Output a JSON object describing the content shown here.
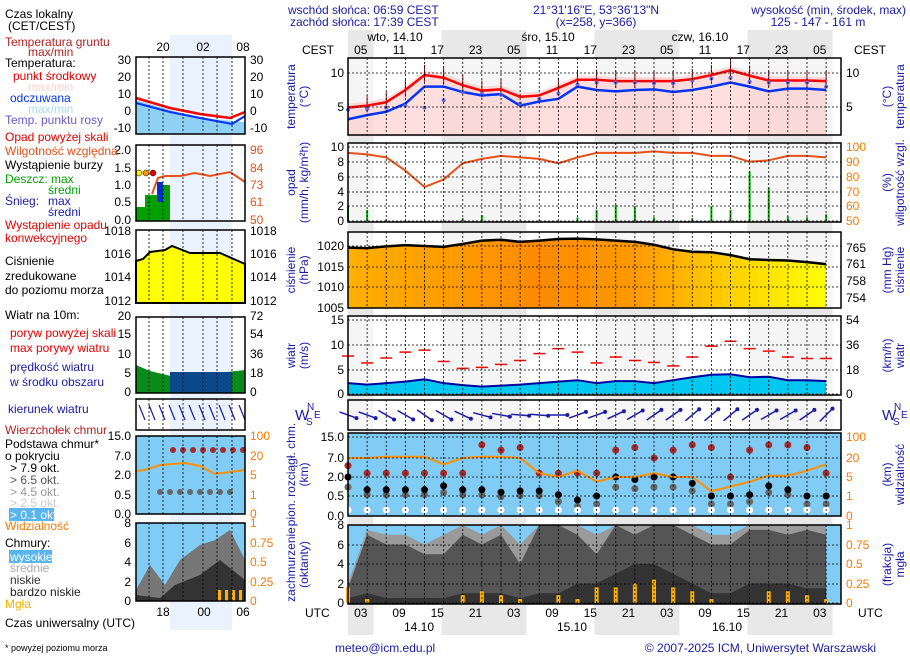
{
  "header": {
    "sunrise": "wschód słońca: 06:59 CEST",
    "sunset": "zachód słońca: 17:39 CEST",
    "coords": "21°31'16\"E, 53°36'13\"N",
    "grid": "(x=258,  y=366)",
    "elevation_label": "wysokość (min, środek, max)",
    "elevation_values": "125 - 147 - 161 m"
  },
  "timeline": {
    "tz_top": "CEST",
    "tz_bottom": "UTC",
    "days_top": [
      "wto, 14.10",
      "śro, 15.10",
      "czw, 16.10"
    ],
    "days_bottom": [
      "14.10",
      "15.10",
      "16.10"
    ],
    "hours_top": [
      "05",
      "11",
      "17",
      "23",
      "05",
      "11",
      "17",
      "23",
      "05",
      "11",
      "17",
      "23",
      "05"
    ],
    "hours_bottom": [
      "03",
      "09",
      "15",
      "21",
      "03",
      "09",
      "15",
      "21",
      "03",
      "09",
      "15",
      "21",
      "03"
    ]
  },
  "axes": {
    "temp": {
      "title": "temperatura",
      "unit": "(°C)",
      "left": [
        "10",
        "5"
      ],
      "right": [
        "10",
        "5"
      ]
    },
    "precip": {
      "title": "opad",
      "unit": "(mm/h, kg/m²h)",
      "left": [
        "10",
        "8",
        "6",
        "4",
        "2",
        "0"
      ],
      "right_title": "wilgotność wzgl.",
      "right_unit": "(%)",
      "right": [
        "100",
        "90",
        "80",
        "70",
        "60",
        "50"
      ]
    },
    "pressure": {
      "title": "ciśnienie",
      "unit": "(hPa)",
      "left": [
        "1020",
        "1015",
        "1010",
        "1005"
      ],
      "right_title": "ciśnienie",
      "right_unit": "(mm Hg)",
      "right": [
        "765",
        "761",
        "758",
        "754"
      ]
    },
    "wind": {
      "title": "wiatr",
      "unit": "(m/s)",
      "left": [
        "15",
        "10",
        "5",
        "0"
      ],
      "right_title": "wiatr",
      "right_unit": "(km/h)",
      "right": [
        "54",
        "36",
        "18",
        "0"
      ]
    },
    "winddir": {
      "compass": [
        "W",
        "N",
        "S",
        "E"
      ]
    },
    "cloudbase": {
      "title": "pion. rozciągł. chm.",
      "unit": "(km)",
      "left": [
        "15.0",
        "7.0",
        "2.0",
        "0.5",
        "0.0"
      ],
      "right_title": "widzialność",
      "right_unit": "(km)",
      "right": [
        "100",
        "20",
        "5",
        "1",
        "0"
      ]
    },
    "cloudcover": {
      "title": "zachmurzenie",
      "unit": "(oktanty)",
      "left": [
        "8",
        "6",
        "4",
        "2",
        "0"
      ],
      "right_title": "mgła",
      "right_unit": "(frakcja)",
      "right": [
        "1",
        "0.75",
        "0.5",
        "0.25",
        "0"
      ]
    }
  },
  "legend": {
    "local_time": "Czas lokalny",
    "local_time_tz": "(CET/CEST)",
    "top_hours": [
      "20",
      "02",
      "08"
    ],
    "bottom_hours": [
      "18",
      "00",
      "06"
    ],
    "ground_temp": "Temperatura gruntu",
    "ground_temp_mm": "max/min",
    "temperature": "Temperatura:",
    "mid_point": "punkt środkowy",
    "mid_mm": "max/min",
    "feels": "odczuwana",
    "feels_mm": "max/min",
    "dew": "Temp. punktu rosy",
    "temp_ticks": [
      "30",
      "20",
      "10",
      "0",
      "-10"
    ],
    "precip_over": "Opad powyżej skali",
    "humidity": "Wilgotność względna",
    "storm": "Wystąpienie burzy",
    "rain": "Deszcz: max",
    "rain_mean": "średni",
    "snow": "Śnieg:",
    "snow_max": "max",
    "snow_mean": "średni",
    "convective": "Wystąpienie opadu",
    "convective2": "konwekcyjnego",
    "precip_ticks": [
      "2.0",
      "1.5",
      "1.0",
      "0.5",
      "0.0"
    ],
    "hum_ticks": [
      "96",
      "84",
      "73",
      "61",
      "50"
    ],
    "pressure1": "Ciśnienie",
    "pressure2": "zredukowane",
    "pressure3": "do poziomu morza",
    "press_ticks": [
      "1018",
      "1016",
      "1014",
      "1012"
    ],
    "wind_title": "Wiatr na 10m:",
    "gust_over": "poryw powyżej skali",
    "gust_max": "max porywy wiatru",
    "wind_speed": "prędkość wiatru",
    "wind_speed2": "w środku obszaru",
    "wind_ticks": [
      "20",
      "15",
      "10",
      "5",
      "0"
    ],
    "wind_kmh_ticks": [
      "72",
      "54",
      "36",
      "18",
      "0"
    ],
    "wind_dir": "kierunek wiatru",
    "cloud_top": "Wierzchołek chmur",
    "cloud_base": "Podstawa chmur*",
    "cloud_base2": "o pokryciu",
    "okt": [
      "> 7.9 okt.",
      "> 6.5 okt.",
      "> 4.5 okt.",
      "> 2.5 okt.",
      "> 0.1 okt."
    ],
    "visibility": "Widzialność",
    "cb_ticks": [
      "15.0",
      "7.0",
      "2.0",
      "0.5",
      "0.0"
    ],
    "vis_ticks": [
      "100",
      "20",
      "5",
      "1",
      "0"
    ],
    "clouds": "Chmury:",
    "high": "wysokie",
    "mid": "średnie",
    "low": "niskie",
    "very_low": "bardzo niskie",
    "fog": "Mgła",
    "cc_ticks": [
      "8",
      "6",
      "4",
      "2",
      "0"
    ],
    "fog_ticks": [
      "1",
      "0.75",
      "0.5",
      "0.25",
      "0"
    ],
    "utc": "Czas uniwersalny (UTC)",
    "footnote": "* powyżej poziomu morza"
  },
  "footer": {
    "email": "meteo@icm.edu.pl",
    "copyright": "© 2007-2025 ICM, Uniwersytet Warszawski"
  },
  "colors": {
    "temp": "#ff0000",
    "feels": "#0033ff",
    "dew": "#6666dd",
    "humidity": "#e8501a",
    "rain": "#00b000",
    "gust": "#ff0000",
    "wind": "#00c8f0",
    "winddir": "#1a1aa6",
    "cloud_top": "#a52a2a",
    "visibility": "#ff9000",
    "fog": "#ffb000",
    "night": "#e8e8e8",
    "sky": "#80ccf5"
  },
  "chart_data": {
    "type": "line",
    "x_label": "CEST",
    "x": [
      "14.10 03",
      "06",
      "09",
      "12",
      "15",
      "18",
      "21",
      "15.10 00",
      "03",
      "06",
      "09",
      "12",
      "15",
      "18",
      "21",
      "16.10 00",
      "03",
      "06",
      "09",
      "12",
      "15",
      "18",
      "21",
      "17.10 00",
      "03",
      "06"
    ],
    "series": [
      {
        "name": "punkt środkowy",
        "panel": "temp",
        "values": [
          4.9,
          5.2,
          5.7,
          7.5,
          9.7,
          9.3,
          8.2,
          7.4,
          7.6,
          6.5,
          6.7,
          7.8,
          9.0,
          9.0,
          8.8,
          8.8,
          8.8,
          8.8,
          9.1,
          9.7,
          10.4,
          9.6,
          8.9,
          8.9,
          8.9,
          8.8
        ]
      },
      {
        "name": "odczuwana",
        "panel": "temp",
        "values": [
          3.2,
          3.8,
          4.3,
          5.5,
          8.0,
          8.0,
          7.2,
          6.7,
          6.9,
          5.2,
          5.8,
          6.2,
          8.0,
          7.5,
          7.3,
          7.5,
          7.6,
          7.2,
          7.5,
          8.0,
          8.6,
          8.0,
          7.3,
          7.7,
          7.7,
          7.5
        ]
      },
      {
        "name": "Temp. punktu rosy",
        "panel": "temp",
        "values": [
          4.6,
          4.7,
          4.9,
          5.2,
          4.9,
          6.0,
          7.2,
          7.0,
          6.8,
          5.5,
          6.2,
          7.0,
          8.3,
          8.6,
          8.6,
          8.6,
          8.5,
          8.5,
          8.9,
          9.2,
          9.3,
          8.7,
          8.6,
          8.6,
          8.6,
          8.0
        ]
      },
      {
        "name": "Wilgotność względna",
        "panel": "precip",
        "values": [
          96,
          95,
          93,
          84,
          73,
          78,
          89,
          92,
          94,
          93,
          92,
          89,
          93,
          96,
          96,
          96,
          97,
          96,
          96,
          94,
          94,
          90,
          91,
          94,
          94,
          93
        ]
      },
      {
        "name": "Deszcz",
        "panel": "precip",
        "values": [
          2.0,
          1.5,
          0.2,
          0,
          0,
          0,
          0.4,
          0.8,
          0,
          0,
          0.1,
          0,
          0.5,
          1.5,
          2.2,
          2.0,
          0.5,
          0.2,
          0.4,
          2.0,
          1.5,
          6.7,
          4.5,
          0.6,
          0.5,
          0.9
        ]
      },
      {
        "name": "Ciśnienie",
        "panel": "pressure",
        "values": [
          1019.6,
          1019.5,
          1019.9,
          1020.2,
          1020.0,
          1019.8,
          1020.5,
          1021.3,
          1021.5,
          1021.0,
          1021.3,
          1021.7,
          1021.8,
          1021.6,
          1021.3,
          1021.0,
          1020.3,
          1019.2,
          1018.6,
          1018.5,
          1017.8,
          1016.8,
          1016.6,
          1016.5,
          1016.1,
          1015.6
        ]
      },
      {
        "name": "prędkość wiatru",
        "panel": "wind",
        "values": [
          2.2,
          1.9,
          2.2,
          2.5,
          3.0,
          2.2,
          1.8,
          1.5,
          1.7,
          1.9,
          2.2,
          2.5,
          2.8,
          2.2,
          2.6,
          2.6,
          2.2,
          2.8,
          3.4,
          3.9,
          4.0,
          3.4,
          3.5,
          2.8,
          2.8,
          2.6
        ]
      },
      {
        "name": "max porywy wiatru",
        "panel": "wind",
        "values": [
          7.7,
          6.3,
          7.3,
          8.5,
          8.9,
          6.6,
          5.2,
          5.4,
          6.0,
          6.8,
          8.2,
          9.2,
          8.5,
          6.3,
          7.5,
          6.8,
          6.4,
          5.7,
          7.5,
          9.7,
          10.7,
          9.2,
          8.7,
          7.5,
          7.2,
          7.2
        ]
      },
      {
        "name": "kierunek wiatru",
        "panel": "winddir",
        "values": [
          290,
          290,
          300,
          300,
          305,
          300,
          295,
          285,
          280,
          275,
          275,
          270,
          250,
          250,
          245,
          240,
          235,
          235,
          230,
          230,
          230,
          235,
          240,
          240,
          235,
          225
        ]
      },
      {
        "name": "Wierzchołek chmur",
        "panel": "cloudbase",
        "values": [
          5,
          3,
          3,
          3,
          3,
          3,
          3,
          12,
          10,
          11,
          3,
          3,
          3,
          3,
          10,
          11,
          7,
          10,
          12,
          11,
          2,
          10,
          12,
          12,
          11,
          3
        ]
      },
      {
        "name": "> 7.9 okt.",
        "panel": "cloudbase",
        "values": [
          2,
          1,
          1,
          1,
          1,
          1.3,
          1,
          1,
          0.8,
          0.9,
          0.9,
          0.6,
          0.4,
          0.5,
          2,
          1.8,
          2,
          2,
          1.5,
          0.5,
          0.5,
          0.6,
          1.3,
          1,
          0.5,
          0.5
        ]
      },
      {
        "name": "Widzialność",
        "panel": "cloudbase",
        "values": [
          20,
          20,
          25,
          25,
          25,
          15,
          20,
          25,
          25,
          20,
          8,
          5,
          10,
          4,
          5,
          5,
          8,
          5,
          5,
          2,
          3,
          4,
          6,
          6,
          10,
          15
        ]
      },
      {
        "name": "wysokie",
        "panel": "cloudcover",
        "values": [
          2,
          7.5,
          7,
          7,
          6,
          7,
          8,
          7,
          8,
          6,
          8,
          8,
          8,
          7,
          8,
          8,
          8,
          8,
          8,
          7,
          7,
          8,
          8,
          8,
          8,
          8
        ]
      },
      {
        "name": "niskie",
        "panel": "cloudcover",
        "values": [
          1.5,
          7,
          6,
          6,
          5,
          5,
          7,
          6,
          7,
          4,
          8,
          8,
          7,
          5,
          8,
          7,
          8,
          8,
          7,
          6,
          6,
          7.5,
          7.5,
          7,
          7.5,
          7
        ]
      },
      {
        "name": "bardzo niskie",
        "panel": "cloudcover",
        "values": [
          0.5,
          1,
          0.5,
          0.5,
          0.5,
          0.5,
          1,
          1,
          1,
          0.5,
          1,
          1,
          2,
          2,
          3,
          4,
          4,
          3,
          2,
          1,
          1,
          2,
          2,
          2,
          1.5,
          1.5
        ]
      },
      {
        "name": "Mgła",
        "panel": "cloudcover",
        "values": [
          0.2,
          0.05,
          0,
          0,
          0,
          0,
          0.1,
          0.15,
          0.1,
          0.05,
          0,
          0.1,
          0.05,
          0.2,
          0.2,
          0.25,
          0.3,
          0.2,
          0.15,
          0.05,
          0,
          0,
          0.15,
          0.15,
          0.1,
          0.05
        ]
      }
    ]
  }
}
